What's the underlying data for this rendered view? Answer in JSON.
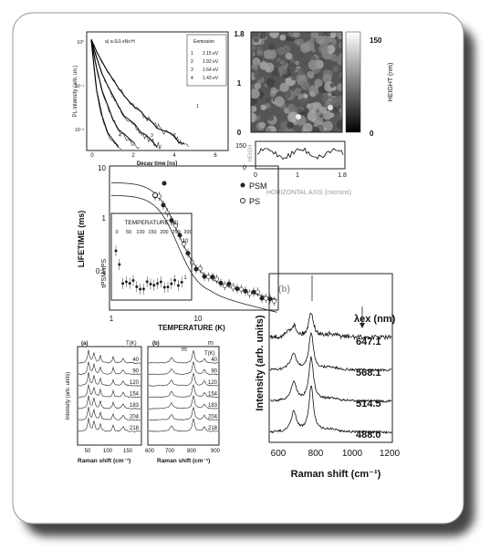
{
  "decay": {
    "sample": "a) a-Si1-xNx:H",
    "legend_title": "Eemission",
    "legend": [
      {
        "n": "1",
        "energy": "2.15 eV"
      },
      {
        "n": "2",
        "energy": "1.92 eV"
      },
      {
        "n": "3",
        "energy": "1.64 eV"
      },
      {
        "n": "4",
        "energy": "1.43 eV"
      }
    ],
    "y_label": "PL intensity (arb. un.)",
    "x_label": "Decay time [ns]",
    "x_ticks": [
      "0",
      "2",
      "4",
      "6"
    ],
    "y_ticks": [
      "10⁰",
      "10⁻¹",
      "10⁻²"
    ],
    "curve_labels": [
      "1",
      "2",
      "3",
      "4"
    ]
  },
  "afm": {
    "y_ticks": [
      "1.8",
      "1",
      "0"
    ],
    "colorbar_ticks": [
      "150",
      "0"
    ],
    "colorbar_label": "HEIGHT (nm)",
    "profile_y_ticks": [
      "150",
      "0"
    ],
    "profile_y_label": "HEIGH",
    "profile_x_ticks": [
      "0",
      "1",
      "1.8"
    ],
    "x_label": "HORIZONTAL AXIS (microns)"
  },
  "lifetime": {
    "y_label": "LIFETIME (ms)",
    "y_ticks": [
      "10",
      "1",
      "0.1"
    ],
    "x_ticks": [
      "1",
      "10"
    ],
    "x_label": "TEMPERATURE (K)",
    "legend": [
      "PSM",
      "PS"
    ],
    "inset": {
      "x_label": "TEMPERATURE (K)",
      "x_ticks": [
        "0",
        "50",
        "100",
        "150",
        "200",
        "250",
        "300"
      ],
      "y_ticks": [
        "10",
        "1"
      ],
      "y_label": "τPSM/τPS"
    }
  },
  "raman_a": {
    "panel": "(a)",
    "legend_title": "T(K)",
    "temperatures": [
      "40",
      "90",
      "120",
      "154",
      "183",
      "204",
      "218"
    ],
    "x_ticks": [
      "50",
      "100",
      "150"
    ],
    "x_label": "Raman shift (cm⁻¹)",
    "y_label": "Intensity (arb. units)"
  },
  "raman_b": {
    "panel": "(b)",
    "peak_labels": [
      "m",
      "m"
    ],
    "legend_title": "T(K)",
    "temperatures": [
      "40",
      "90",
      "120",
      "154",
      "183",
      "204",
      "218"
    ],
    "x_ticks": [
      "600",
      "700",
      "800",
      "900"
    ],
    "x_label": "Raman shift (cm⁻¹)"
  },
  "raman_big": {
    "panel": "(b)",
    "legend_title": "λex (nm)",
    "wavelengths": [
      "647.1",
      "568.1",
      "514.5",
      "488.0"
    ],
    "x_ticks": [
      "600",
      "800",
      "1000",
      "1200"
    ],
    "x_label": "Raman shift (cm⁻¹)",
    "y_label": "Intensity (arb. units)"
  }
}
